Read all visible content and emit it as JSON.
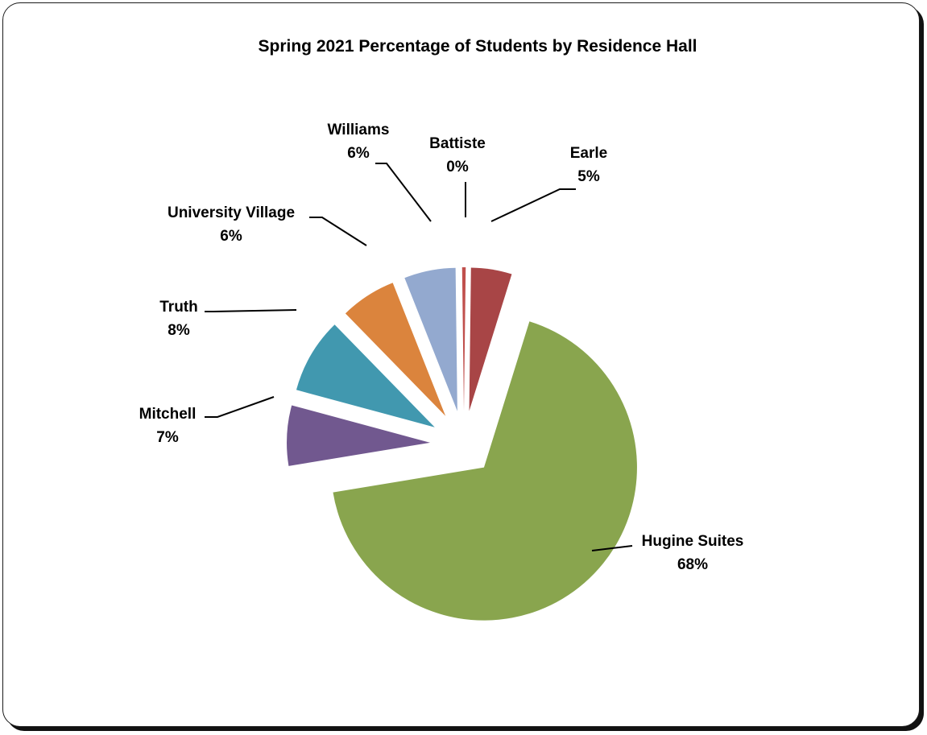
{
  "chart_data": {
    "type": "pie",
    "title": "Spring 2021 Percentage of Students by Residence Hall",
    "slices": [
      {
        "name": "Battiste",
        "label": "0%",
        "value": 0.4,
        "color": "#c0504d"
      },
      {
        "name": "Earle",
        "label": "5%",
        "value": 4.6,
        "color": "#a84546"
      },
      {
        "name": "Hugine Suites",
        "label": "68%",
        "value": 67.6,
        "color": "#89a54e"
      },
      {
        "name": "Mitchell",
        "label": "7%",
        "value": 6.8,
        "color": "#71588f"
      },
      {
        "name": "Truth",
        "label": "8%",
        "value": 8.5,
        "color": "#4198af"
      },
      {
        "name": "University Village",
        "label": "6%",
        "value": 6.3,
        "color": "#db843d"
      },
      {
        "name": "Williams",
        "label": "6%",
        "value": 5.8,
        "color": "#93a9cf"
      }
    ],
    "legend": "none",
    "data_labels": "outside-with-leader-lines",
    "exploded": true
  }
}
